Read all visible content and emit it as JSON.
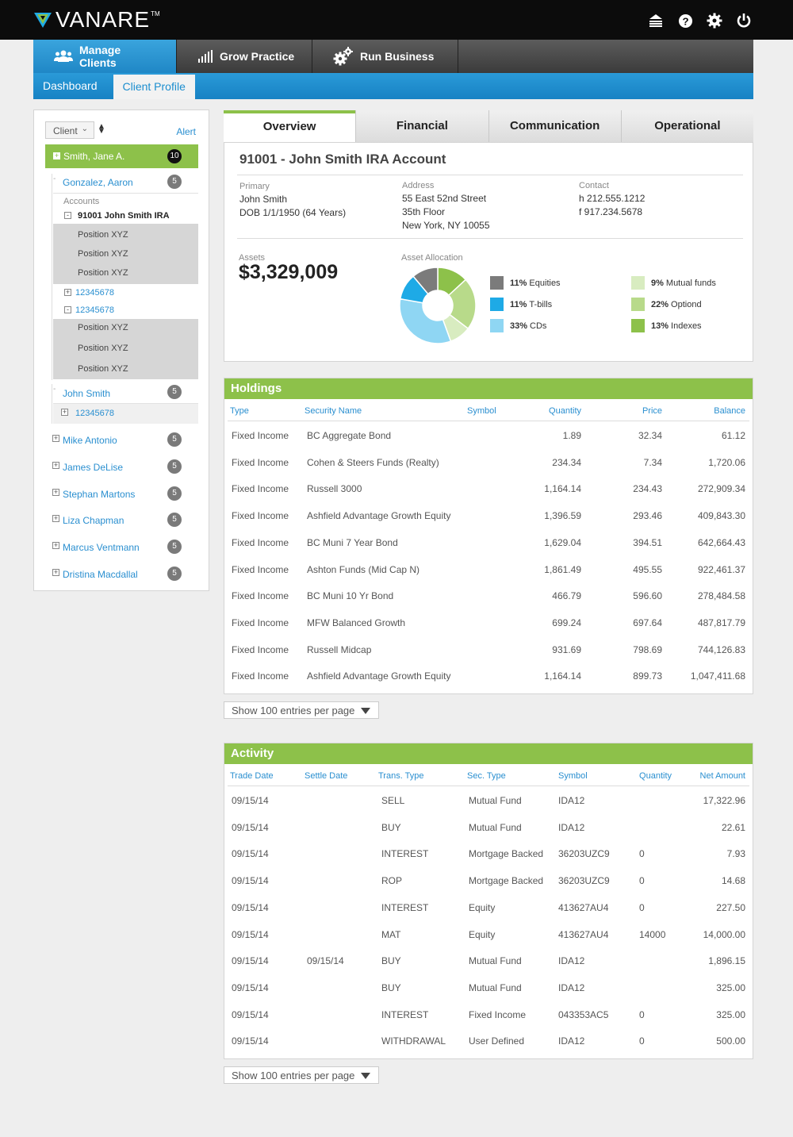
{
  "app": {
    "name": "VANARE",
    "tm": "TM"
  },
  "topbar_icons": [
    "stack-icon",
    "help-icon",
    "gear-icon",
    "power-icon"
  ],
  "main_tabs": [
    {
      "label": "Manage Clients",
      "icon": "users-icon"
    },
    {
      "label": "Grow Practice",
      "icon": "bar-signal-icon"
    },
    {
      "label": "Run Business",
      "icon": "gears-icon"
    }
  ],
  "sub_tabs": [
    {
      "label": "Dashboard"
    },
    {
      "label": "Client Profile"
    }
  ],
  "sidebar": {
    "client_select": "Client",
    "alert_label": "Alert",
    "selected": {
      "name": "Smith, Jane A.",
      "count": "10"
    },
    "gonzalez": {
      "name": "Gonzalez, Aaron",
      "count": "5"
    },
    "accounts_label": "Accounts",
    "account_main": "91001 John Smith IRA",
    "positions": [
      "Position XYZ",
      "Position XYZ",
      "Position XYZ",
      "Position XYZ",
      "Position XYZ",
      "Position XYZ"
    ],
    "sub_accounts": [
      "12345678",
      "12345678",
      "12345678"
    ],
    "john": {
      "name": "John Smith",
      "count": "5"
    },
    "clients": [
      {
        "name": "Mike Antonio",
        "count": "5"
      },
      {
        "name": "James DeLise",
        "count": "5"
      },
      {
        "name": "Stephan Martons",
        "count": "5"
      },
      {
        "name": "Liza Chapman",
        "count": "5"
      },
      {
        "name": "Marcus Ventmann",
        "count": "5"
      },
      {
        "name": "Dristina Macdallal",
        "count": "5"
      }
    ]
  },
  "overview_tabs": [
    "Overview",
    "Financial",
    "Communication",
    "Operational"
  ],
  "account": {
    "title": "91001 - John Smith IRA Account",
    "primary_label": "Primary",
    "primary_name": "John Smith",
    "primary_dob": "DOB 1/1/1950 (64 Years)",
    "address_label": "Address",
    "address_1": "55 East 52nd Street",
    "address_2": "35th Floor",
    "address_3": "New York, NY 10055",
    "contact_label": "Contact",
    "contact_h": "h 212.555.1212",
    "contact_f": "f 917.234.5678",
    "assets_label": "Assets",
    "assets_value": "$3,329,009",
    "allocation_label": "Asset Allocation"
  },
  "chart_data": {
    "type": "pie",
    "title": "Asset Allocation",
    "slices": [
      {
        "pct": "11%",
        "name": "Equities",
        "value": 11,
        "color": "#7b7b7b"
      },
      {
        "pct": "11%",
        "name": "T-bills",
        "value": 11,
        "color": "#1eaae6"
      },
      {
        "pct": "33%",
        "name": "CDs",
        "value": 33,
        "color": "#8fd6f3"
      },
      {
        "pct": "9%",
        "name": "Mutual funds",
        "value": 9,
        "color": "#d8ecc0"
      },
      {
        "pct": "22%",
        "name": "Optiond",
        "value": 22,
        "color": "#b8da8a"
      },
      {
        "pct": "13%",
        "name": "Indexes",
        "value": 13,
        "color": "#8dc14a"
      }
    ]
  },
  "holdings": {
    "title": "Holdings",
    "columns": [
      "Type",
      "Security Name",
      "Symbol",
      "Quantity",
      "Price",
      "Balance"
    ],
    "rows": [
      [
        "Fixed Income",
        "BC Aggregate Bond",
        "",
        "1.89",
        "32.34",
        "61.12"
      ],
      [
        "Fixed Income",
        "Cohen & Steers Funds (Realty)",
        "",
        "234.34",
        "7.34",
        "1,720.06"
      ],
      [
        "Fixed Income",
        "Russell 3000",
        "",
        "1,164.14",
        "234.43",
        "272,909.34"
      ],
      [
        "Fixed Income",
        "Ashfield Advantage Growth Equity",
        "",
        "1,396.59",
        "293.46",
        "409,843.30"
      ],
      [
        "Fixed Income",
        "BC Muni 7 Year Bond",
        "",
        "1,629.04",
        "394.51",
        "642,664.43"
      ],
      [
        "Fixed Income",
        "Ashton Funds (Mid Cap N)",
        "",
        "1,861.49",
        "495.55",
        "922,461.37"
      ],
      [
        "Fixed Income",
        "BC Muni 10 Yr Bond",
        "",
        "466.79",
        "596.60",
        "278,484.58"
      ],
      [
        "Fixed Income",
        "MFW Balanced Growth",
        "",
        "699.24",
        "697.64",
        "487,817.79"
      ],
      [
        "Fixed Income",
        "Russell Midcap",
        "",
        "931.69",
        "798.69",
        "744,126.83"
      ],
      [
        "Fixed Income",
        "Ashfield Advantage Growth Equity",
        "",
        "1,164.14",
        "899.73",
        "1,047,411.68"
      ]
    ],
    "pager": "Show 100 entries per page"
  },
  "activity": {
    "title": "Activity",
    "columns": [
      "Trade Date",
      "Settle Date",
      "Trans. Type",
      "Sec. Type",
      "Symbol",
      "Quantity",
      "Net Amount"
    ],
    "rows": [
      [
        "09/15/14",
        "",
        "SELL",
        "Mutual Fund",
        "IDA12",
        "",
        "17,322.96"
      ],
      [
        "09/15/14",
        "",
        "BUY",
        "Mutual Fund",
        "IDA12",
        "",
        "22.61"
      ],
      [
        "09/15/14",
        "",
        "INTEREST",
        "Mortgage Backed",
        "36203UZC9",
        "0",
        "7.93"
      ],
      [
        "09/15/14",
        "",
        "ROP",
        "Mortgage Backed",
        "36203UZC9",
        "0",
        "14.68"
      ],
      [
        "09/15/14",
        "",
        "INTEREST",
        "Equity",
        "413627AU4",
        "0",
        "227.50"
      ],
      [
        "09/15/14",
        "",
        "MAT",
        "Equity",
        "413627AU4",
        "14000",
        "14,000.00"
      ],
      [
        "09/15/14",
        "09/15/14",
        "BUY",
        "Mutual Fund",
        "IDA12",
        "",
        "1,896.15"
      ],
      [
        "09/15/14",
        "",
        "BUY",
        "Mutual Fund",
        "IDA12",
        "",
        "325.00"
      ],
      [
        "09/15/14",
        "",
        "INTEREST",
        "Fixed Income",
        "043353AC5",
        "0",
        "325.00"
      ],
      [
        "09/15/14",
        "",
        "WITHDRAWAL",
        "User Defined",
        "IDA12",
        "0",
        "500.00"
      ]
    ],
    "pager": "Show 100 entries per page"
  }
}
